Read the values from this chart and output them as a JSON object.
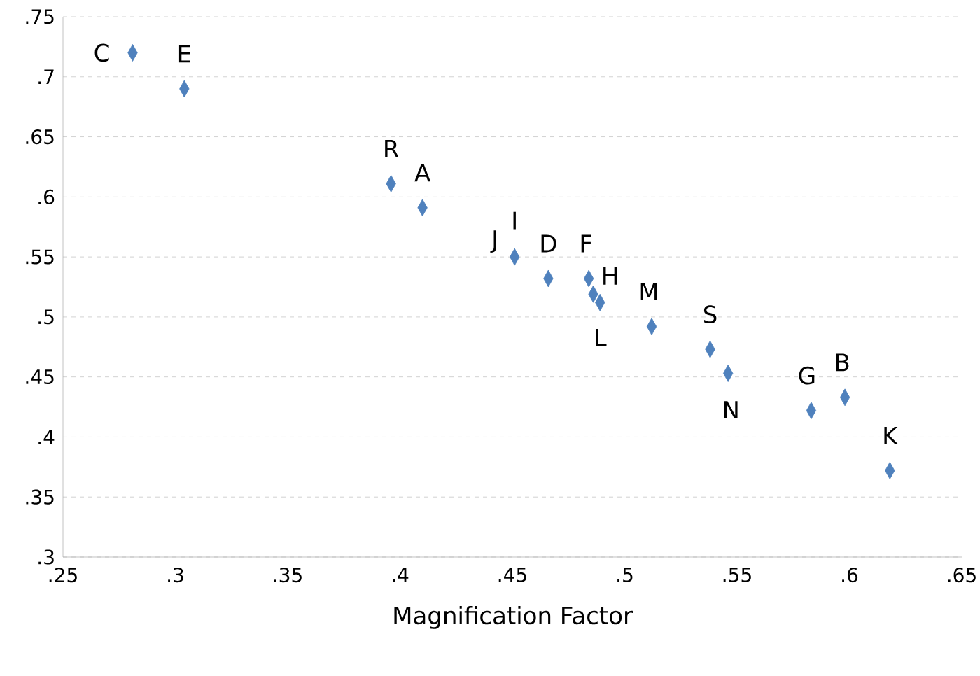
{
  "chart_data": {
    "type": "scatter",
    "xlabel": "Magnification Factor",
    "x": [
      0.281,
      0.304,
      0.396,
      0.41,
      0.451,
      0.466,
      0.484,
      0.486,
      0.489,
      0.512,
      0.538,
      0.546,
      0.583,
      0.598,
      0.618
    ],
    "values": [
      0.72,
      0.69,
      0.611,
      0.591,
      0.55,
      0.532,
      0.532,
      0.519,
      0.512,
      0.492,
      0.473,
      0.453,
      0.422,
      0.433,
      0.372
    ],
    "color": "#4f81bd",
    "marker": "diamond",
    "grid": "y",
    "xlim": [
      0.25,
      0.65
    ],
    "ylim": [
      0.3,
      0.75
    ],
    "xticks": [
      {
        "value": 0.25,
        "label": ".25"
      },
      {
        "value": 0.3,
        "label": ".3"
      },
      {
        "value": 0.35,
        "label": ".35"
      },
      {
        "value": 0.4,
        "label": ".4"
      },
      {
        "value": 0.45,
        "label": ".45"
      },
      {
        "value": 0.5,
        "label": ".5"
      },
      {
        "value": 0.55,
        "label": ".55"
      },
      {
        "value": 0.6,
        "label": ".6"
      },
      {
        "value": 0.65,
        "label": ".65"
      }
    ],
    "yticks": [
      {
        "value": 0.3,
        "label": ".3"
      },
      {
        "value": 0.35,
        "label": ".35"
      },
      {
        "value": 0.4,
        "label": ".4"
      },
      {
        "value": 0.45,
        "label": ".45"
      },
      {
        "value": 0.5,
        "label": ".5"
      },
      {
        "value": 0.55,
        "label": ".55"
      },
      {
        "value": 0.6,
        "label": ".6"
      },
      {
        "value": 0.65,
        "label": ".65"
      },
      {
        "value": 0.7,
        "label": ".7"
      },
      {
        "value": 0.75,
        "label": ".75"
      }
    ],
    "annotations": [
      {
        "text": "C",
        "x": 0.281,
        "y": 0.72
      },
      {
        "text": "E",
        "x": 0.304,
        "y": 0.69
      },
      {
        "text": "R",
        "x": 0.396,
        "y": 0.611
      },
      {
        "text": "A",
        "x": 0.41,
        "y": 0.591
      },
      {
        "text": "J",
        "x": 0.451,
        "y": 0.55
      },
      {
        "text": "I",
        "x": 0.451,
        "y": 0.55
      },
      {
        "text": "D",
        "x": 0.466,
        "y": 0.532
      },
      {
        "text": "F",
        "x": 0.484,
        "y": 0.532
      },
      {
        "text": "H",
        "x": 0.486,
        "y": 0.519
      },
      {
        "text": "L",
        "x": 0.489,
        "y": 0.512
      },
      {
        "text": "M",
        "x": 0.512,
        "y": 0.492
      },
      {
        "text": "S",
        "x": 0.538,
        "y": 0.473
      },
      {
        "text": "N",
        "x": 0.546,
        "y": 0.453
      },
      {
        "text": "G",
        "x": 0.583,
        "y": 0.422
      },
      {
        "text": "B",
        "x": 0.598,
        "y": 0.433
      },
      {
        "text": "K",
        "x": 0.618,
        "y": 0.372
      }
    ]
  }
}
